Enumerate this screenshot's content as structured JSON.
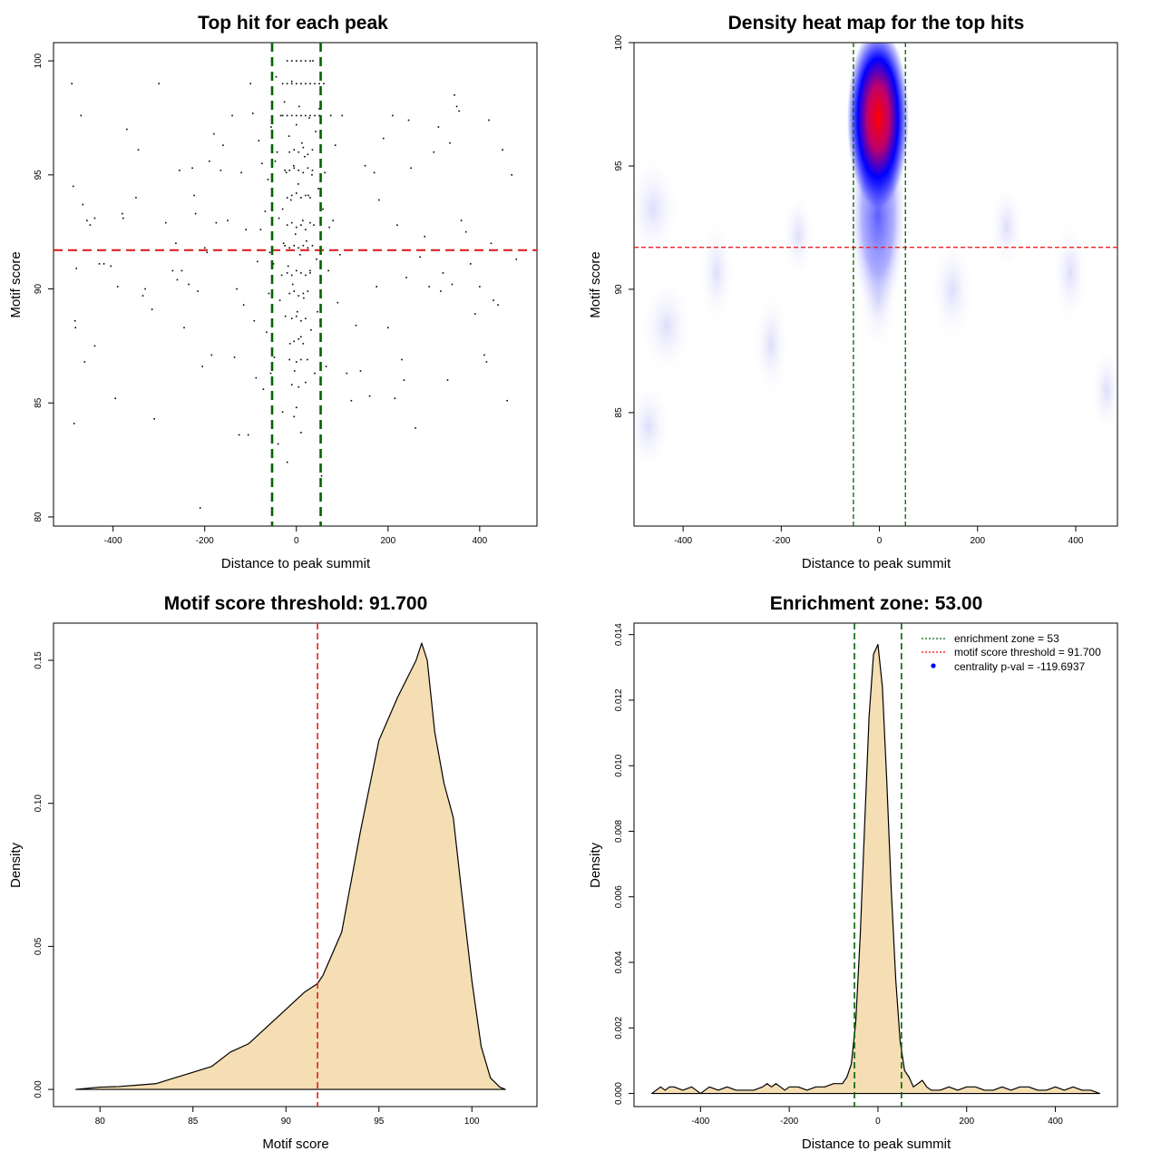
{
  "chart_data": [
    {
      "id": "scatter",
      "type": "scatter",
      "title": "Top hit for each peak",
      "xlabel": "Distance to peak summit",
      "ylabel": "Motif score",
      "xlim": [
        -530,
        525
      ],
      "ylim": [
        79.6,
        100.8
      ],
      "xticks": [
        -400,
        -200,
        0,
        200,
        400
      ],
      "yticks": [
        80,
        85,
        90,
        95,
        100
      ],
      "threshold_y": 91.7,
      "zone_x": [
        -53,
        53
      ],
      "points": [
        [
          -490,
          99.0
        ],
        [
          -487,
          94.5
        ],
        [
          -470,
          97.6
        ],
        [
          -466,
          93.7
        ],
        [
          -480,
          90.9
        ],
        [
          -457,
          93.0
        ],
        [
          -450,
          92.8
        ],
        [
          -440,
          93.1
        ],
        [
          -430,
          91.1
        ],
        [
          -420,
          91.1
        ],
        [
          -483,
          88.6
        ],
        [
          -482,
          88.3
        ],
        [
          -462,
          86.8
        ],
        [
          -440,
          87.5
        ],
        [
          -395,
          85.2
        ],
        [
          -485,
          84.1
        ],
        [
          -405,
          91.0
        ],
        [
          -390,
          90.1
        ],
        [
          -380,
          93.3
        ],
        [
          -378,
          93.1
        ],
        [
          -370,
          97.0
        ],
        [
          -350,
          94.0
        ],
        [
          -345,
          96.1
        ],
        [
          -335,
          89.7
        ],
        [
          -330,
          90.0
        ],
        [
          -315,
          89.1
        ],
        [
          -310,
          84.3
        ],
        [
          -300,
          99.0
        ],
        [
          -285,
          92.9
        ],
        [
          -270,
          90.8
        ],
        [
          -263,
          92.0
        ],
        [
          -260,
          90.4
        ],
        [
          -255,
          95.2
        ],
        [
          -250,
          90.8
        ],
        [
          -245,
          88.3
        ],
        [
          -235,
          90.2
        ],
        [
          -227,
          95.3
        ],
        [
          -223,
          94.1
        ],
        [
          -220,
          93.3
        ],
        [
          -215,
          89.9
        ],
        [
          -210,
          80.4
        ],
        [
          -205,
          86.6
        ],
        [
          -200,
          91.8
        ],
        [
          -195,
          91.6
        ],
        [
          -190,
          95.6
        ],
        [
          -185,
          87.1
        ],
        [
          -180,
          96.8
        ],
        [
          -175,
          92.9
        ],
        [
          -165,
          95.2
        ],
        [
          -160,
          96.3
        ],
        [
          -150,
          93.0
        ],
        [
          -140,
          97.6
        ],
        [
          -135,
          87.0
        ],
        [
          -130,
          90.0
        ],
        [
          -125,
          83.6
        ],
        [
          -120,
          95.1
        ],
        [
          -115,
          89.3
        ],
        [
          -110,
          92.6
        ],
        [
          -105,
          83.6
        ],
        [
          -100,
          99.0
        ],
        [
          -95,
          97.7
        ],
        [
          -92,
          88.6
        ],
        [
          -88,
          86.1
        ],
        [
          -85,
          91.2
        ],
        [
          -82,
          96.5
        ],
        [
          -78,
          92.6
        ],
        [
          -75,
          95.5
        ],
        [
          -72,
          85.6
        ],
        [
          -68,
          93.4
        ],
        [
          -65,
          88.1
        ],
        [
          -62,
          94.8
        ],
        [
          -60,
          89.8
        ],
        [
          -58,
          91.6
        ],
        [
          -56,
          86.3
        ],
        [
          -55,
          97.1
        ],
        [
          -54,
          100.0
        ],
        [
          -50,
          91.1
        ],
        [
          -48,
          87.0
        ],
        [
          -46,
          95.6
        ],
        [
          -44,
          99.3
        ],
        [
          -42,
          96.0
        ],
        [
          -40,
          83.2
        ],
        [
          -38,
          93.1
        ],
        [
          -36,
          89.5
        ],
        [
          -34,
          97.6
        ],
        [
          -32,
          90.6
        ],
        [
          -30,
          84.6
        ],
        [
          -28,
          92.0
        ],
        [
          -26,
          98.2
        ],
        [
          -24,
          88.8
        ],
        [
          -22,
          95.1
        ],
        [
          -20,
          82.4
        ],
        [
          -18,
          91.0
        ],
        [
          -16,
          96.7
        ],
        [
          -14,
          87.6
        ],
        [
          -12,
          93.9
        ],
        [
          -10,
          99.1
        ],
        [
          -8,
          90.2
        ],
        [
          -6,
          95.4
        ],
        [
          -4,
          86.4
        ],
        [
          -2,
          92.4
        ],
        [
          0,
          97.2
        ],
        [
          2,
          89.0
        ],
        [
          4,
          94.6
        ],
        [
          6,
          98.0
        ],
        [
          8,
          91.5
        ],
        [
          10,
          87.9
        ],
        [
          12,
          96.4
        ],
        [
          14,
          93.0
        ],
        [
          16,
          89.6
        ],
        [
          18,
          95.8
        ],
        [
          20,
          99.0
        ],
        [
          22,
          92.1
        ],
        [
          24,
          86.9
        ],
        [
          26,
          94.1
        ],
        [
          28,
          97.5
        ],
        [
          30,
          90.7
        ],
        [
          32,
          88.2
        ],
        [
          34,
          95.0
        ],
        [
          36,
          100.0
        ],
        [
          38,
          92.8
        ],
        [
          40,
          86.3
        ],
        [
          42,
          96.9
        ],
        [
          44,
          91.3
        ],
        [
          46,
          89.0
        ],
        [
          48,
          94.4
        ],
        [
          50,
          97.9
        ],
        [
          52,
          88.6
        ],
        [
          55,
          81.8
        ],
        [
          58,
          93.5
        ],
        [
          60,
          99.0
        ],
        [
          62,
          95.1
        ],
        [
          65,
          86.6
        ],
        [
          70,
          90.8
        ],
        [
          72,
          92.7
        ],
        [
          75,
          97.6
        ],
        [
          80,
          93.0
        ],
        [
          85,
          96.3
        ],
        [
          90,
          89.4
        ],
        [
          95,
          91.5
        ],
        [
          100,
          97.6
        ],
        [
          110,
          86.3
        ],
        [
          120,
          85.1
        ],
        [
          130,
          88.4
        ],
        [
          140,
          86.4
        ],
        [
          150,
          95.4
        ],
        [
          160,
          85.3
        ],
        [
          170,
          95.1
        ],
        [
          175,
          90.1
        ],
        [
          180,
          93.9
        ],
        [
          190,
          96.6
        ],
        [
          200,
          88.3
        ],
        [
          210,
          97.6
        ],
        [
          215,
          85.2
        ],
        [
          220,
          92.8
        ],
        [
          230,
          86.9
        ],
        [
          235,
          86.0
        ],
        [
          240,
          90.5
        ],
        [
          245,
          97.4
        ],
        [
          250,
          95.3
        ],
        [
          260,
          83.9
        ],
        [
          270,
          91.4
        ],
        [
          280,
          92.3
        ],
        [
          290,
          90.1
        ],
        [
          300,
          96.0
        ],
        [
          310,
          97.1
        ],
        [
          315,
          89.9
        ],
        [
          320,
          90.7
        ],
        [
          330,
          86.0
        ],
        [
          335,
          96.4
        ],
        [
          340,
          90.2
        ],
        [
          345,
          98.5
        ],
        [
          350,
          98.0
        ],
        [
          355,
          97.8
        ],
        [
          360,
          93.0
        ],
        [
          370,
          92.5
        ],
        [
          380,
          91.1
        ],
        [
          390,
          88.9
        ],
        [
          400,
          90.1
        ],
        [
          405,
          91.7
        ],
        [
          410,
          87.1
        ],
        [
          415,
          86.8
        ],
        [
          420,
          97.4
        ],
        [
          425,
          92.0
        ],
        [
          430,
          89.5
        ],
        [
          440,
          89.3
        ],
        [
          450,
          96.1
        ],
        [
          460,
          85.1
        ],
        [
          470,
          95.0
        ],
        [
          480,
          91.3
        ],
        [
          -30,
          99.0
        ],
        [
          -20,
          99.0
        ],
        [
          -10,
          99.0
        ],
        [
          0,
          99.0
        ],
        [
          10,
          99.0
        ],
        [
          30,
          99.0
        ],
        [
          40,
          99.0
        ],
        [
          50,
          99.0
        ],
        [
          -30,
          97.6
        ],
        [
          -20,
          97.6
        ],
        [
          -10,
          97.6
        ],
        [
          0,
          97.6
        ],
        [
          10,
          97.6
        ],
        [
          20,
          97.6
        ],
        [
          30,
          97.6
        ],
        [
          40,
          97.6
        ],
        [
          50,
          97.6
        ],
        [
          -20,
          100.0
        ],
        [
          -10,
          100.0
        ],
        [
          0,
          100.0
        ],
        [
          10,
          100.0
        ],
        [
          20,
          100.0
        ],
        [
          30,
          100.0
        ],
        [
          -15,
          96.0
        ],
        [
          -5,
          96.1
        ],
        [
          5,
          96.0
        ],
        [
          15,
          96.2
        ],
        [
          25,
          95.9
        ],
        [
          35,
          96.1
        ],
        [
          -25,
          95.2
        ],
        [
          -15,
          95.2
        ],
        [
          -5,
          95.3
        ],
        [
          5,
          95.2
        ],
        [
          15,
          95.1
        ],
        [
          25,
          95.3
        ],
        [
          35,
          95.2
        ],
        [
          -20,
          94.0
        ],
        [
          -10,
          94.1
        ],
        [
          0,
          94.2
        ],
        [
          10,
          94.0
        ],
        [
          20,
          94.1
        ],
        [
          30,
          94.0
        ],
        [
          -30,
          93.5
        ],
        [
          -20,
          92.8
        ],
        [
          -10,
          92.9
        ],
        [
          0,
          92.7
        ],
        [
          10,
          92.8
        ],
        [
          20,
          92.6
        ],
        [
          30,
          92.9
        ],
        [
          -25,
          91.9
        ],
        [
          -15,
          91.8
        ],
        [
          -5,
          91.9
        ],
        [
          5,
          91.8
        ],
        [
          15,
          91.9
        ],
        [
          25,
          91.8
        ],
        [
          35,
          91.9
        ],
        [
          -20,
          90.7
        ],
        [
          -10,
          90.6
        ],
        [
          0,
          90.8
        ],
        [
          10,
          90.7
        ],
        [
          20,
          90.6
        ],
        [
          30,
          90.8
        ],
        [
          -15,
          89.8
        ],
        [
          -5,
          89.9
        ],
        [
          5,
          89.7
        ],
        [
          15,
          89.8
        ],
        [
          25,
          89.9
        ],
        [
          -10,
          88.7
        ],
        [
          0,
          88.8
        ],
        [
          10,
          88.6
        ],
        [
          20,
          88.7
        ],
        [
          -5,
          87.7
        ],
        [
          5,
          87.8
        ],
        [
          15,
          87.6
        ],
        [
          -15,
          86.9
        ],
        [
          0,
          86.8
        ],
        [
          10,
          86.9
        ],
        [
          -10,
          85.8
        ],
        [
          5,
          85.7
        ],
        [
          20,
          85.9
        ],
        [
          -5,
          84.4
        ],
        [
          10,
          83.7
        ],
        [
          0,
          84.8
        ]
      ]
    },
    {
      "id": "heatmap",
      "type": "heatmap",
      "title": "Density heat map for the top hits",
      "xlabel": "Distance to peak summit",
      "ylabel": "Motif score",
      "xlim": [
        -500,
        485
      ],
      "ylim": [
        80.4,
        100.0
      ],
      "xticks": [
        -400,
        -200,
        0,
        200,
        400
      ],
      "yticks": [
        85,
        90,
        95,
        100
      ],
      "threshold_y": 91.7,
      "zone_x": [
        -53,
        53
      ]
    },
    {
      "id": "score_density",
      "type": "area",
      "title": "Motif score threshold: 91.700",
      "xlabel": "Motif score",
      "ylabel": "Density",
      "xlim": [
        77.5,
        103.5
      ],
      "ylim": [
        -0.006,
        0.163
      ],
      "xticks": [
        80,
        85,
        90,
        95,
        100
      ],
      "yticks": [
        0.0,
        0.05,
        0.1,
        0.15
      ],
      "ytick_labels": [
        "0.00",
        "0.05",
        "0.10",
        "0.15"
      ],
      "threshold_x": 91.7,
      "x": [
        78.7,
        80,
        81,
        82,
        83,
        84,
        85,
        86,
        87,
        88,
        89,
        90,
        91,
        91.7,
        92,
        93,
        94,
        95,
        96,
        97,
        97.3,
        97.6,
        98,
        98.5,
        99,
        99.5,
        100,
        100.5,
        101,
        101.5,
        101.8
      ],
      "y": [
        0,
        0.0008,
        0.001,
        0.0015,
        0.002,
        0.004,
        0.006,
        0.008,
        0.013,
        0.016,
        0.022,
        0.028,
        0.034,
        0.037,
        0.04,
        0.055,
        0.09,
        0.122,
        0.137,
        0.15,
        0.156,
        0.15,
        0.125,
        0.107,
        0.095,
        0.066,
        0.038,
        0.015,
        0.004,
        0.0008,
        0
      ]
    },
    {
      "id": "distance_density",
      "type": "area",
      "title": "Enrichment zone: 53.00",
      "xlabel": "Distance to peak summit",
      "ylabel": "Density",
      "xlim": [
        -550,
        540
      ],
      "ylim": [
        -0.0004,
        0.01435
      ],
      "xticks": [
        -400,
        -200,
        0,
        200,
        400
      ],
      "yticks": [
        0.0,
        0.002,
        0.004,
        0.006,
        0.008,
        0.01,
        0.012,
        0.014
      ],
      "ytick_labels": [
        "0.000",
        "0.002",
        "0.004",
        "0.006",
        "0.008",
        "0.010",
        "0.012",
        "0.014"
      ],
      "zone_x": [
        -53,
        53
      ],
      "legend": [
        {
          "label": "enrichment zone = 53",
          "color": "#006400",
          "symbol": "line"
        },
        {
          "label": "motif score threshold = 91.700",
          "color": "#ff0000",
          "symbol": "line"
        },
        {
          "label": "centrality p-val = -119.6937",
          "color": "#0000ff",
          "symbol": "point"
        }
      ],
      "x": [
        -510,
        -500,
        -490,
        -480,
        -470,
        -460,
        -440,
        -420,
        -400,
        -380,
        -360,
        -340,
        -320,
        -300,
        -280,
        -260,
        -250,
        -240,
        -230,
        -220,
        -210,
        -200,
        -190,
        -180,
        -160,
        -140,
        -120,
        -100,
        -90,
        -80,
        -70,
        -60,
        -50,
        -40,
        -30,
        -20,
        -10,
        0,
        10,
        20,
        30,
        40,
        50,
        60,
        70,
        80,
        90,
        100,
        110,
        120,
        140,
        160,
        180,
        200,
        220,
        240,
        260,
        280,
        300,
        320,
        340,
        360,
        380,
        400,
        420,
        440,
        460,
        480,
        500
      ],
      "y": [
        0,
        0.0001,
        0.0002,
        0.0001,
        0.0002,
        0.0002,
        0.0001,
        0.0002,
        0,
        0.0002,
        0.0001,
        0.0002,
        0.0001,
        0.0001,
        0.0001,
        0.0002,
        0.0003,
        0.0002,
        0.0003,
        0.0002,
        0.0001,
        0.0002,
        0.0002,
        0.0002,
        0.0001,
        0.0002,
        0.0002,
        0.0003,
        0.0003,
        0.0003,
        0.0005,
        0.0009,
        0.0022,
        0.0048,
        0.0082,
        0.0115,
        0.0134,
        0.0137,
        0.0124,
        0.0095,
        0.0062,
        0.0035,
        0.0016,
        0.0007,
        0.0005,
        0.0002,
        0.0003,
        0.0004,
        0.0002,
        0.0001,
        0.0001,
        0.0002,
        0.0001,
        0.0002,
        0.0002,
        0.0001,
        0.0001,
        0.0002,
        0.0001,
        0.0002,
        0.0002,
        0.0001,
        0.0001,
        0.0002,
        0.0001,
        0.0002,
        0.0001,
        0.0001,
        0
      ]
    }
  ]
}
